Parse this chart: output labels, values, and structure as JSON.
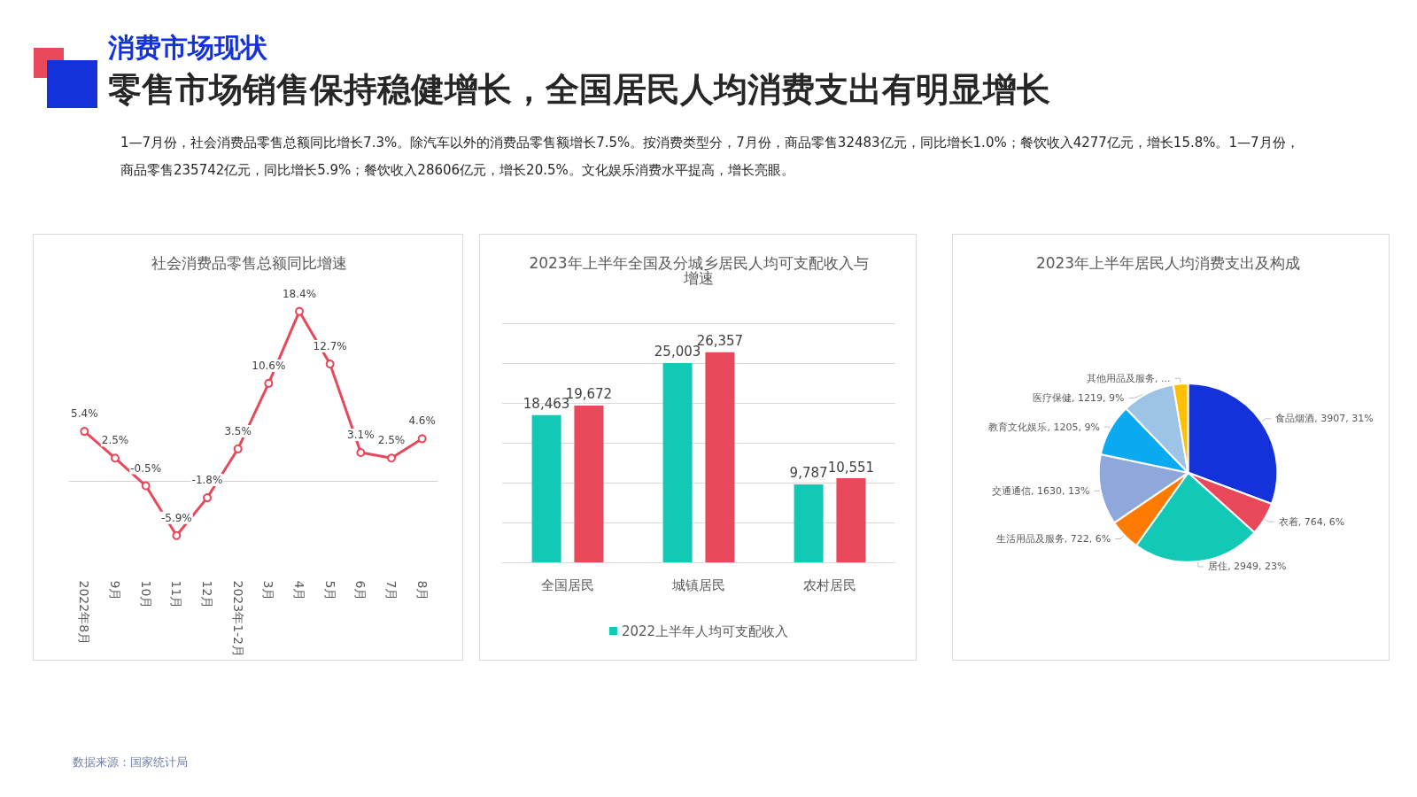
{
  "chart_data": [
    {
      "type": "other",
      "subtitle": "消费市场现状",
      "title": "零售市场销售保持稳健增长，全国居民人均消费支出有明显增长",
      "annotations": [
        "1—7月份，社会消费品零售总额同比增长7.3%。除汽车以外的消费品零售额增长7.5%。按消费类型分，7月份，商品零售32483亿元，同比增长1.0%；餐饮收入4277亿元，增长15.8%。1—7月份，商品零售235742亿元，同比增长5.9%；餐饮收入28606亿元，增长20.5%。文化娱乐消费水平提高，增长亮眼。",
        "数据来源：国家统计局"
      ]
    },
    {
      "type": "line",
      "title": "社会消费品零售总额同比增速",
      "categories": [
        "2022年8月",
        "9月",
        "10月",
        "11月",
        "12月",
        "2023年1-2月",
        "3月",
        "4月",
        "5月",
        "6月",
        "7月",
        "8月"
      ],
      "series": [
        {
          "color": "#e8485a",
          "values": [
            5.4,
            2.5,
            -0.5,
            -5.9,
            -1.8,
            3.5,
            10.6,
            18.4,
            12.7,
            3.1,
            2.5,
            4.6
          ],
          "value_labels": [
            "5.4%",
            "2.5%",
            "-0.5%",
            "-5.9%",
            "-1.8%",
            "3.5%",
            "10.6%",
            "18.4%",
            "12.7%",
            "3.1%",
            "2.5%",
            "4.6%"
          ]
        }
      ],
      "marker": "circle",
      "tick_labels": "x",
      "grid": false
    },
    {
      "type": "bar",
      "title": "2023年上半年全国及分城乡居民人均可支配收入与增速",
      "categories": [
        "全国居民",
        "城镇居民",
        "农村居民"
      ],
      "series": [
        {
          "name": "2022上半年人均可支配收入",
          "color": "#12c9b5",
          "values": [
            18463,
            25003,
            9787
          ],
          "value_labels": [
            "18,463",
            "25,003",
            "9,787"
          ]
        },
        {
          "color": "#e8485a",
          "values": [
            19672,
            26357,
            10551
          ],
          "value_labels": [
            "19,672",
            "26,357",
            "10,551"
          ]
        }
      ],
      "ylim": [
        0,
        30000
      ],
      "yticks": [
        {
          "value": 0,
          "label": null
        },
        {
          "value": 5000,
          "label": null
        },
        {
          "value": 10000,
          "label": null
        },
        {
          "value": 15000,
          "label": null
        },
        {
          "value": 20000,
          "label": null
        },
        {
          "value": 25000,
          "label": null
        },
        {
          "value": 30000,
          "label": null
        }
      ],
      "tick_labels": "x",
      "grid": "y",
      "legend": "bottom"
    },
    {
      "type": "pie",
      "title": "2023年上半年居民人均消费支出及构成",
      "categories": [
        "食品烟酒",
        "衣着",
        "居住",
        "生活用品及服务",
        "交通通信",
        "教育文化娱乐",
        "医疗保健",
        "其他用品及服务"
      ],
      "values": [
        3907,
        764,
        2949,
        722,
        1630,
        1205,
        1219,
        338
      ],
      "colors": [
        "#1432dc",
        "#e8485a",
        "#12c9b5",
        "#ff7a00",
        "#8fa8dc",
        "#0aaaf0",
        "#9dc3e6",
        "#ffc000"
      ],
      "value_labels": [
        "3907, 31%",
        "764, 6%",
        "2949, 23%",
        "722, 6%",
        "1630, 13%",
        "1205, 9%",
        "1219, 9%",
        "..."
      ]
    }
  ]
}
